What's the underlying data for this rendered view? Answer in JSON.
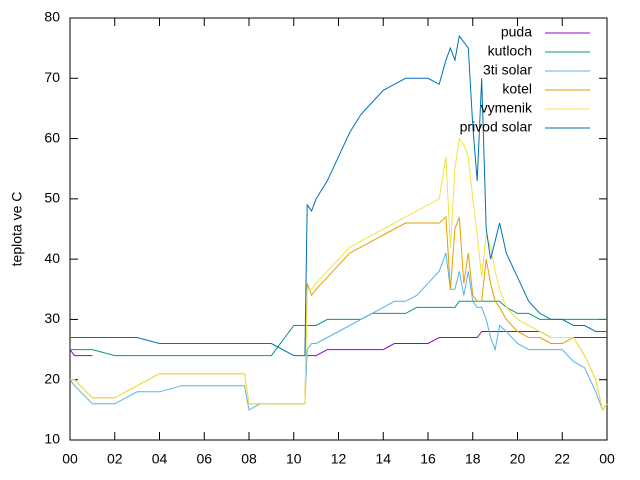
{
  "chart_data": {
    "type": "line",
    "ylabel": "teplota ve C",
    "x": [
      0,
      0.2,
      1,
      2,
      3,
      4,
      5,
      6,
      7,
      7.8,
      8,
      8.5,
      9,
      10,
      10.5,
      10.6,
      10.8,
      11,
      11.5,
      12,
      12.5,
      13,
      13.5,
      14,
      14.5,
      15,
      15.5,
      16,
      16.5,
      16.8,
      17,
      17.2,
      17.4,
      17.6,
      17.8,
      18,
      18.2,
      18.4,
      18.6,
      18.8,
      19,
      19.2,
      19.5,
      20,
      20.5,
      21,
      21.5,
      22,
      22.5,
      23,
      23.5,
      23.8,
      24
    ],
    "xlim": [
      0,
      24
    ],
    "xticks": [
      {
        "value": 0,
        "label": "00"
      },
      {
        "value": 2,
        "label": "02"
      },
      {
        "value": 4,
        "label": "04"
      },
      {
        "value": 6,
        "label": "06"
      },
      {
        "value": 8,
        "label": "08"
      },
      {
        "value": 10,
        "label": "10"
      },
      12,
      14,
      16,
      18,
      20,
      22,
      {
        "value": 24,
        "label": "00"
      }
    ],
    "ylim": [
      10,
      80
    ],
    "yticks": [
      10,
      20,
      30,
      40,
      50,
      60,
      70,
      80
    ],
    "legend": "top-right",
    "series": [
      {
        "name": "puda",
        "color": "#9400d3",
        "values": [
          25,
          24,
          24,
          null,
          null,
          null,
          null,
          null,
          null,
          null,
          null,
          null,
          null,
          null,
          null,
          24,
          24,
          24,
          25,
          25,
          25,
          25,
          25,
          25,
          26,
          26,
          26,
          26,
          27,
          27,
          27,
          27,
          27,
          27,
          27,
          27,
          27,
          28,
          28,
          28,
          28,
          28,
          28,
          28,
          28,
          28,
          27,
          27,
          27,
          27,
          27,
          27,
          27
        ]
      },
      {
        "name": "kutloch",
        "color": "#009e73",
        "values": [
          25,
          25,
          25,
          24,
          24,
          24,
          24,
          24,
          24,
          24,
          24,
          24,
          24,
          29,
          29,
          29,
          29,
          29,
          30,
          30,
          30,
          30,
          31,
          31,
          31,
          31,
          32,
          32,
          32,
          32,
          32,
          32,
          33,
          33,
          33,
          33,
          33,
          33,
          33,
          33,
          33,
          33,
          32,
          31,
          31,
          30,
          30,
          30,
          30,
          30,
          30,
          30,
          30
        ]
      },
      {
        "name": "3ti solar",
        "color": "#56b4e9",
        "values": [
          20,
          19,
          16,
          16,
          18,
          18,
          19,
          19,
          19,
          19,
          15,
          16,
          16,
          16,
          16,
          25,
          26,
          26,
          27,
          28,
          29,
          30,
          31,
          32,
          33,
          33,
          34,
          36,
          38,
          41,
          35,
          35,
          38,
          34,
          38,
          33,
          32,
          32,
          30,
          27,
          25,
          29,
          28,
          26,
          25,
          25,
          25,
          25,
          23,
          22,
          18,
          15,
          16
        ]
      },
      {
        "name": "kotel",
        "color": "#e69f00",
        "values": [
          20,
          20,
          17,
          17,
          19,
          21,
          21,
          21,
          21,
          21,
          16,
          16,
          16,
          16,
          16,
          36,
          34,
          35,
          37,
          39,
          41,
          42,
          43,
          44,
          45,
          46,
          46,
          46,
          46,
          47,
          35,
          45,
          47,
          36,
          41,
          34,
          33,
          33,
          40,
          36,
          33,
          32,
          30,
          28,
          27,
          27,
          26,
          26,
          27,
          24,
          20,
          15,
          16
        ]
      },
      {
        "name": "vymenik",
        "color": "#f0e442",
        "values": [
          20,
          20,
          17,
          17,
          19,
          21,
          21,
          21,
          21,
          21,
          16,
          16,
          16,
          16,
          16,
          35,
          35,
          36,
          38,
          40,
          42,
          43,
          44,
          45,
          46,
          47,
          48,
          49,
          50,
          57,
          42,
          55,
          60,
          59,
          57,
          50,
          44,
          37,
          44,
          42,
          38,
          35,
          32,
          30,
          29,
          28,
          27,
          27,
          27,
          24,
          20,
          15,
          16
        ]
      },
      {
        "name": "privod solar",
        "color": "#0072b2",
        "values": [
          27,
          27,
          27,
          27,
          27,
          26,
          26,
          26,
          26,
          26,
          26,
          26,
          26,
          24,
          24,
          49,
          48,
          50,
          53,
          57,
          61,
          64,
          66,
          68,
          69,
          70,
          70,
          70,
          69,
          73,
          75,
          73,
          77,
          76,
          75,
          62,
          53,
          70,
          45,
          40,
          43,
          46,
          41,
          37,
          33,
          31,
          30,
          30,
          29,
          29,
          28,
          28,
          28
        ]
      }
    ]
  }
}
